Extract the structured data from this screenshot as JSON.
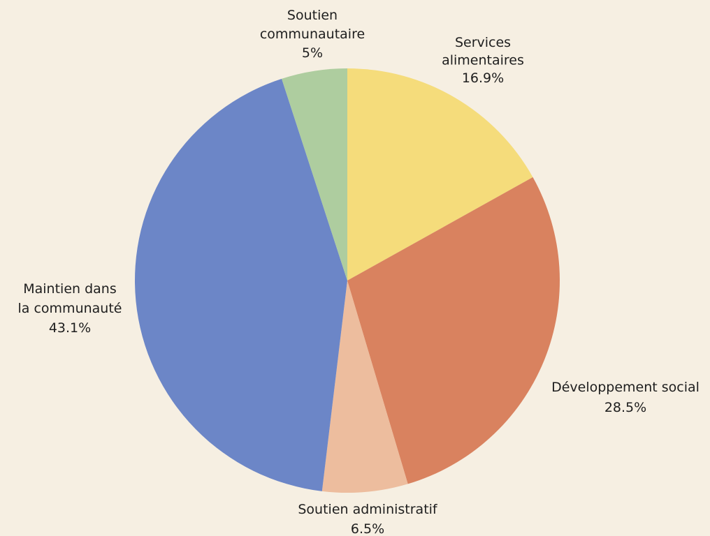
{
  "chart_data": {
    "type": "pie",
    "background": "#f6efe2",
    "slices": [
      {
        "label": [
          "Services",
          "alimentaires"
        ],
        "value_label": "16.9%",
        "value": 16.9,
        "color": "#f5dc7b"
      },
      {
        "label": [
          "Développement social"
        ],
        "value_label": "28.5%",
        "value": 28.5,
        "color": "#d9825f"
      },
      {
        "label": [
          "Soutien administratif"
        ],
        "value_label": "6.5%",
        "value": 6.5,
        "color": "#edbd9e"
      },
      {
        "label": [
          "Maintien dans",
          "la communauté"
        ],
        "value_label": "43.1%",
        "value": 43.1,
        "color": "#6c86c7"
      },
      {
        "label": [
          "Soutien",
          "communautaire"
        ],
        "value_label": "5%",
        "value": 5,
        "color": "#aecd9f"
      }
    ]
  }
}
